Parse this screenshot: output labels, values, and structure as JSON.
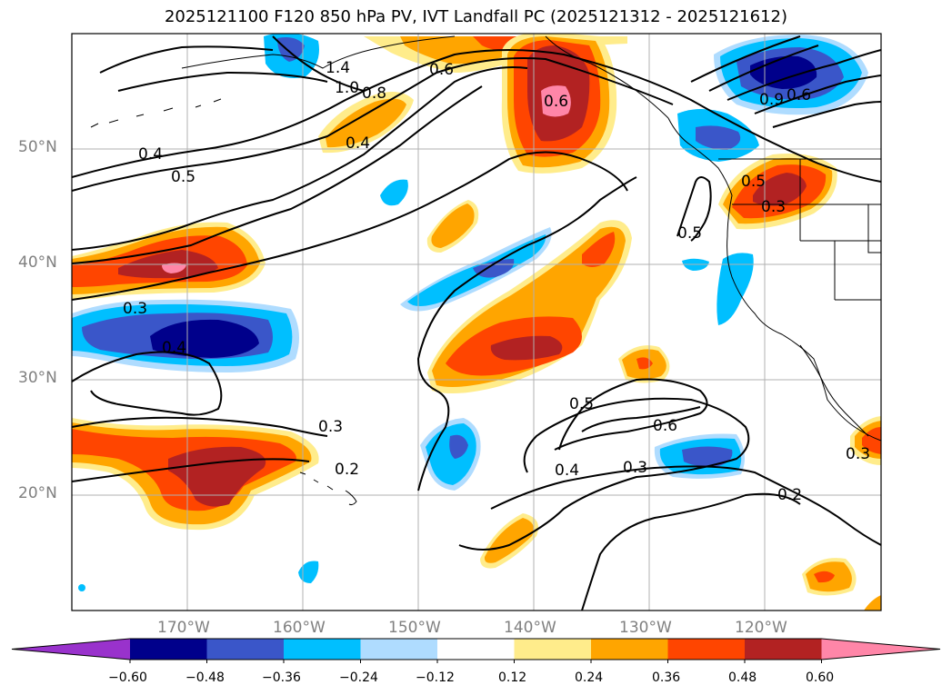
{
  "figure": {
    "title": "2025121100 F120 850 hPa PV, IVT Landfall PC (2025121312 - 2025121612)"
  },
  "map": {
    "projection": "PlateCarree",
    "lon_range": [
      -180,
      -110
    ],
    "lat_range": [
      10,
      60
    ],
    "gridlines": true,
    "lat_labels": [
      "50°N",
      "40°N",
      "30°N",
      "20°N"
    ],
    "lon_labels": [
      "170°W",
      "160°W",
      "150°W",
      "140°W",
      "130°W",
      "120°W"
    ],
    "contour_labels": [
      "1.4",
      "1.0",
      "0.8",
      "0.6",
      "0.4",
      "0.4",
      "0.5",
      "0.6",
      "0.3",
      "0.4",
      "0.3",
      "0.2",
      "0.5",
      "0.6",
      "0.4",
      "0.3",
      "0.2",
      "0.5",
      "0.5",
      "0.3",
      "0.3",
      "0.9",
      "0.6"
    ]
  },
  "colorbar": {
    "ticks": [
      "−0.60",
      "−0.48",
      "−0.36",
      "−0.24",
      "−0.12",
      "0.12",
      "0.24",
      "0.36",
      "0.48",
      "0.60"
    ],
    "colors": [
      "#9932cc",
      "#00008b",
      "#3a56c9",
      "#00bfff",
      "#afdcff",
      "#ffffff",
      "#ffec8b",
      "#ffa500",
      "#ff4500",
      "#b22222",
      "#ff86a8"
    ],
    "extend": "both"
  }
}
